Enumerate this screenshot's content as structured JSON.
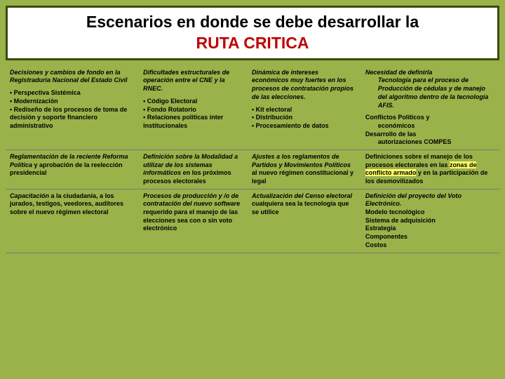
{
  "background_color": "#9ab24a",
  "title_border_color": "#3a4a10",
  "title": {
    "line1": "Escenarios en donde se debe desarrollar la",
    "line2": "RUTA CRITICA",
    "line2_color": "#c00000"
  },
  "rows": [
    {
      "c1": {
        "head": "Decisiones y cambios de fondo en la Registraduría Nacional del Estado Civil",
        "bullets": [
          "Perspectiva Sistémica",
          "Modernización",
          "Rediseño de los procesos de toma de decisión y soporte financiero administrativo"
        ]
      },
      "c2": {
        "head": "Dificultades estructurales de operación entre el CNE y la RNEC.",
        "bullets": [
          "Código Electoral",
          "Fondo Rotatorio",
          "Relaciones políticas inter institucionales"
        ]
      },
      "c3": {
        "head": "Dinámica de intereses económicos muy fuertes en los procesos de contratación propios de las elecciones.",
        "bullets": [
          "Kit electoral",
          "Distribución",
          "Procesamiento de datos"
        ]
      },
      "c4": {
        "head": "Necesidad de definirla",
        "head_indent": "Tecnología para el proceso de Producción de cédulas y de manejo del algoritmo dentro de la tecnología AFIS.",
        "extra1": "Conflictos Políticos y",
        "extra1_indent": "económicos",
        "extra2": "Desarrollo de las",
        "extra2_indent": "autorizaciones COMPES"
      }
    },
    {
      "c1": {
        "bi": "Reglamentación de la reciente Reforma Política",
        "rest": " y aprobación de la reelección presidencial"
      },
      "c2": {
        "bi": "Definición sobre la Modalidad a utilizar de los sistemas informáticos",
        "rest": " en los próximos procesos electorales"
      },
      "c3": {
        "bi": "Ajustes a los reglamentos de Partidos y Movimientos Políticos",
        "rest": " al nuevo régimen constitucional y legal"
      },
      "c4": {
        "pre": "Definiciones sobre el manejo de los procesos electorales en las ",
        "hl": "zonas de conflicto armado",
        "rest": " y en la participación de los desmovilizados"
      }
    },
    {
      "c1": {
        "bi": "Capacitación",
        "rest": " a la ciudadanía, a los jurados, testigos, veedores, auditores sobre el nuevo régimen electoral"
      },
      "c2": {
        "bi": "Procesos de producción y /o de contratación del nuevo software",
        "rest": " requerido para el manejo de las elecciones sea con o sin voto electrónico"
      },
      "c3": {
        "bi": "Actualización del Censo electoral",
        "rest": " cualquiera sea la tecnología que se utilice"
      },
      "c4": {
        "bi": "Definición del proyecto del Voto Electrónico.",
        "lines": [
          "Modelo tecnológico",
          "Sistema de adquisición",
          "Estrategia",
          "Componentes",
          "Costos"
        ]
      }
    }
  ]
}
